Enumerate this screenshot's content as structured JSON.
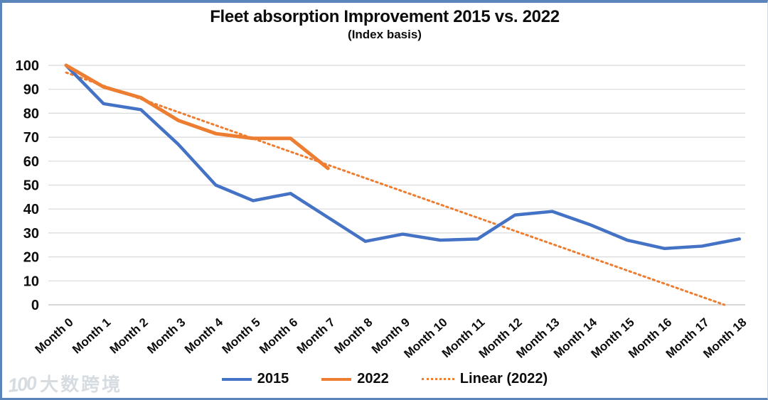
{
  "header": {
    "title": "Fleet absorption Improvement 2015 vs. 2022",
    "subtitle": "(Index basis)"
  },
  "chart_data": {
    "type": "line",
    "title": "Fleet absorption Improvement 2015 vs. 2022",
    "subtitle": "(Index basis)",
    "xlabel": "",
    "ylabel": "",
    "ylim": [
      0,
      100
    ],
    "yticks": [
      0,
      10,
      20,
      30,
      40,
      50,
      60,
      70,
      80,
      90,
      100
    ],
    "grid": true,
    "legend_position": "bottom",
    "categories": [
      "Month 0",
      "Month 1",
      "Month 2",
      "Month 3",
      "Month 4",
      "Month 5",
      "Month 6",
      "Month 7",
      "Month 8",
      "Month 9",
      "Month 10",
      "Month 11",
      "Month 12",
      "Month 13",
      "Month 14",
      "Month 15",
      "Month 16",
      "Month 17",
      "Month 18"
    ],
    "series": [
      {
        "name": "2015",
        "color": "#4472C4",
        "style": "solid",
        "values": [
          100,
          84,
          81.5,
          67,
          50,
          43.5,
          46.5,
          36.5,
          26.5,
          29.5,
          27,
          27.5,
          37.5,
          39,
          33.5,
          27,
          23.5,
          24.5,
          27.5
        ]
      },
      {
        "name": "2022",
        "color": "#ED7D31",
        "style": "solid",
        "values": [
          100,
          91,
          86.5,
          77,
          71.5,
          69.5,
          69.5,
          57
        ]
      }
    ],
    "trendline": {
      "name": "Linear (2022)",
      "color": "#ED7D31",
      "style": "dotted",
      "start": {
        "month": 0,
        "value": 97
      },
      "end": {
        "month": 17.6,
        "value": 0
      }
    },
    "legend": [
      {
        "label": "2015"
      },
      {
        "label": "2022"
      },
      {
        "label": "Linear (2022)"
      }
    ]
  },
  "watermark": {
    "logo": "100",
    "text": "大数跨境"
  },
  "colors": {
    "series_2015": "#4472C4",
    "series_2022": "#ED7D31",
    "trendline": "#ED7D31",
    "gridline": "#D9D9D9",
    "axis_line": "#BFBFBF",
    "text": "#0D0D0D",
    "frame_border": "#5B84BA",
    "watermark": "#D7DCE1"
  }
}
